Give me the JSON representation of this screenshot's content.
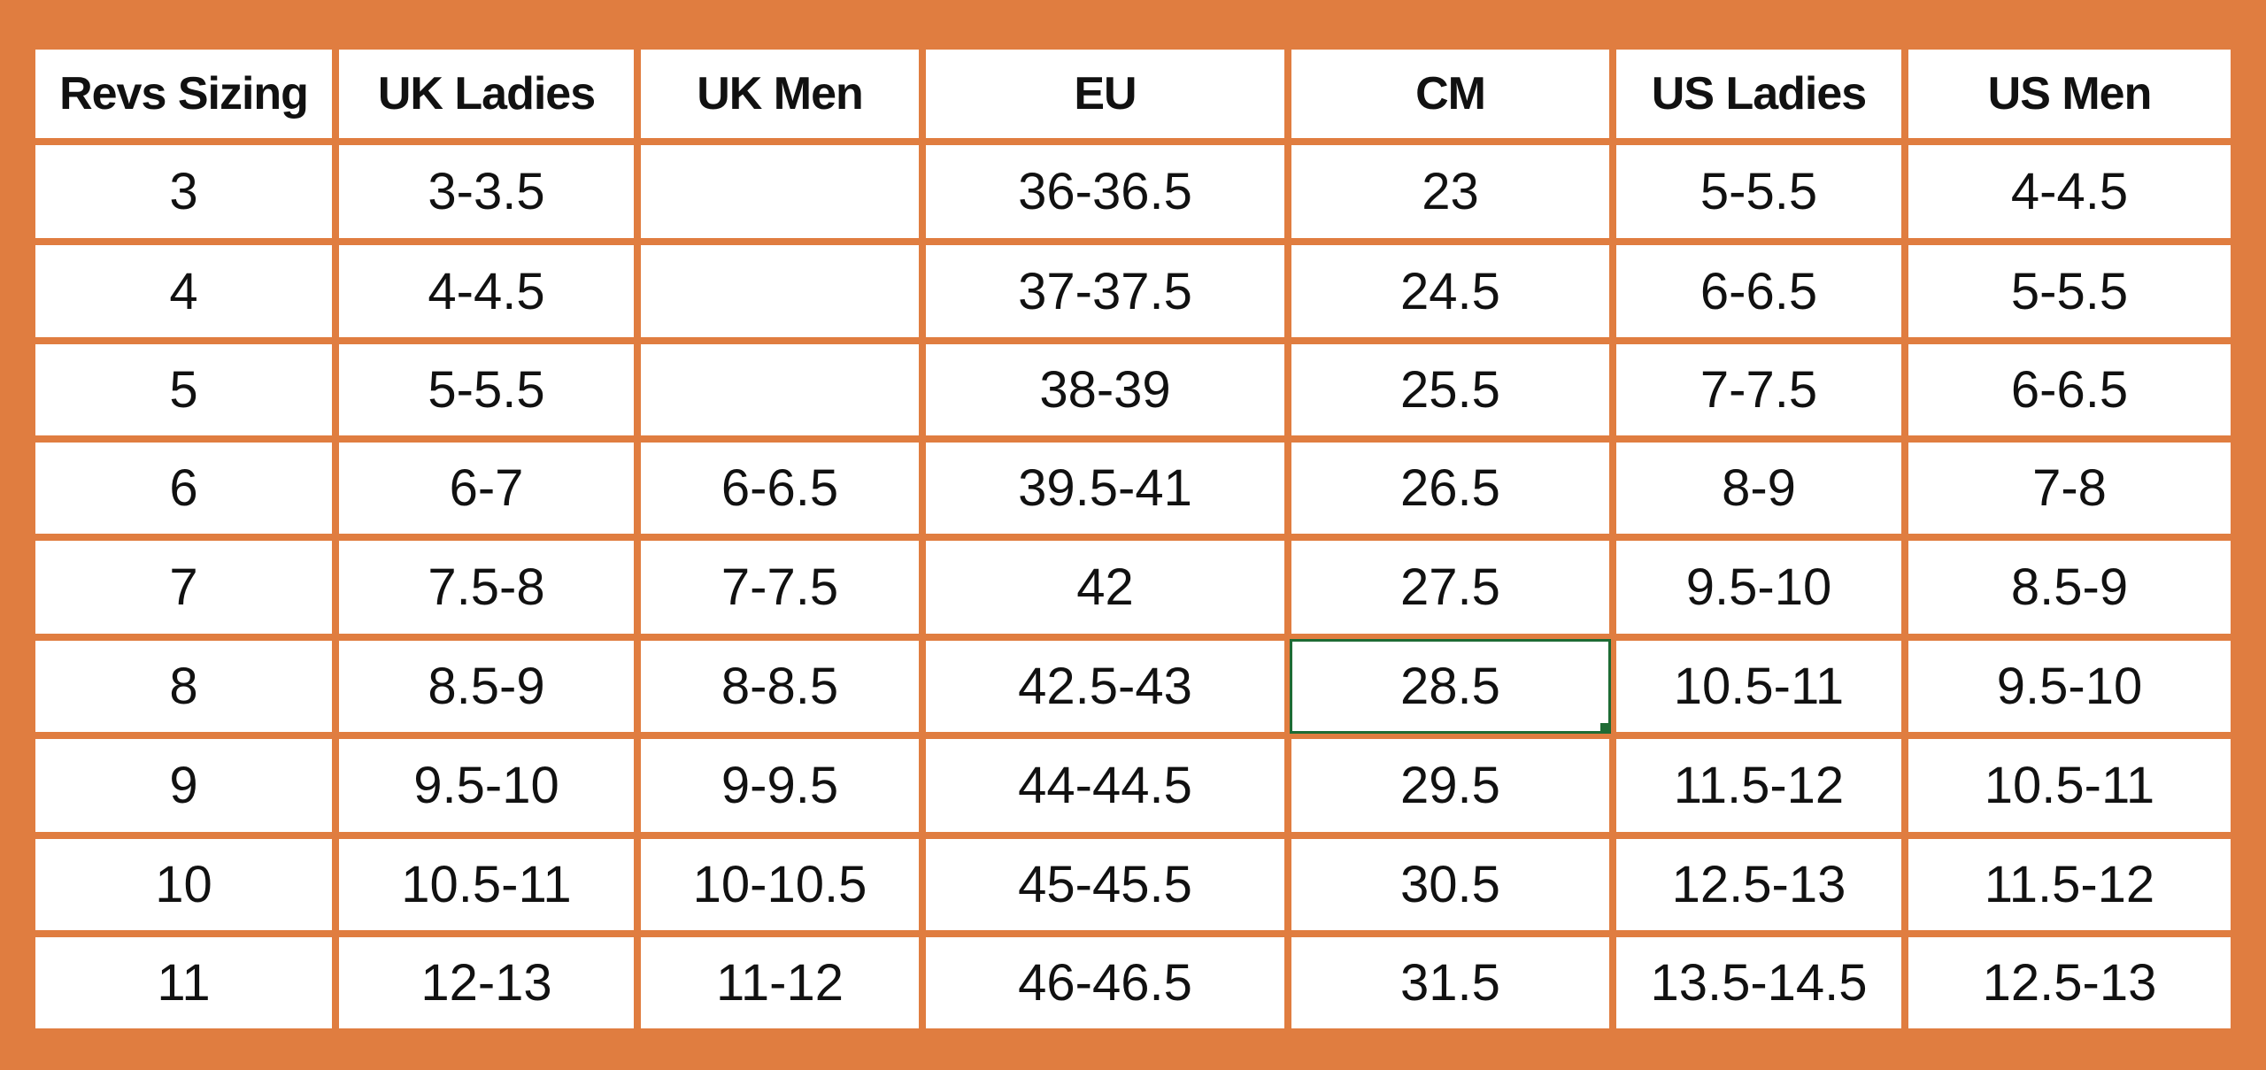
{
  "table": {
    "header": [
      "Revs Sizing",
      "UK Ladies",
      "UK Men",
      "EU",
      "CM",
      "US Ladies",
      "US Men"
    ],
    "rows": [
      [
        "3",
        "3-3.5",
        null,
        "36-36.5",
        "23",
        "5-5.5",
        "4-4.5"
      ],
      [
        "4",
        "4-4.5",
        null,
        "37-37.5",
        "24.5",
        "6-6.5",
        "5-5.5"
      ],
      [
        "5",
        "5-5.5",
        null,
        "38-39",
        "25.5",
        "7-7.5",
        "6-6.5"
      ],
      [
        "6",
        "6-7",
        "6-6.5",
        "39.5-41",
        "26.5",
        "8-9",
        "7-8"
      ],
      [
        "7",
        "7.5-8",
        "7-7.5",
        "42",
        "27.5",
        "9.5-10",
        "8.5-9"
      ],
      [
        "8",
        "8.5-9",
        "8-8.5",
        "42.5-43",
        "28.5",
        "10.5-11",
        "9.5-10"
      ],
      [
        "9",
        "9.5-10",
        "9-9.5",
        "44-44.5",
        "29.5",
        "11.5-12",
        "10.5-11"
      ],
      [
        "10",
        "10.5-11",
        "10-10.5",
        "45-45.5",
        "30.5",
        "12.5-13",
        "11.5-12"
      ],
      [
        "11",
        "12-13",
        "11-12",
        "46-46.5",
        "31.5",
        "13.5-14.5",
        "12.5-13"
      ]
    ]
  }
}
